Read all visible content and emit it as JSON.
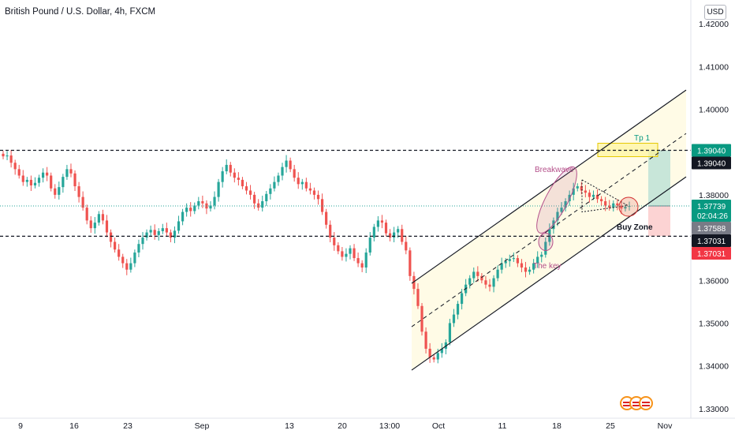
{
  "header": {
    "title": "British Pound / U.S. Dollar, 4h, FXCM"
  },
  "currency_button": "USD",
  "colors": {
    "up": "#26a69a",
    "down": "#ef5350",
    "channel_fill": "#fffbe6",
    "ellipse": "#b4508a",
    "buy_zone_circle": "#e57373",
    "target_fill": "#c8e6d9",
    "stop_fill": "#fcd3d3",
    "tp_box": "#fff59d",
    "tag_green": "#089981",
    "tag_black": "#131722",
    "tag_gray": "#787b86",
    "tag_red": "#f23645"
  },
  "annotations": {
    "breakwave": "Breakwave",
    "the_key": "The key",
    "buy_zone": "Buy Zone",
    "tp": "Tp 1"
  },
  "price_tags": [
    {
      "value": "1.39040",
      "style": "green",
      "price": 1.3904
    },
    {
      "value": "1.39040",
      "style": "black",
      "price": 1.3904
    },
    {
      "value": "1.37739",
      "sub": "02:04:26",
      "style": "green",
      "price": 1.37739
    },
    {
      "value": "1.37588",
      "style": "gray",
      "price": 1.37588
    },
    {
      "value": "1.37031",
      "style": "black",
      "price": 1.37031
    },
    {
      "value": "1.37031",
      "style": "red",
      "price": 1.37031
    }
  ],
  "chart_data": {
    "type": "candlestick",
    "title": "British Pound / U.S. Dollar, 4h, FXCM",
    "symbol": "GBPUSD",
    "timeframe": "4h",
    "y_ticks": [
      "1.42000",
      "1.41000",
      "1.40000",
      "1.38000",
      "1.36000",
      "1.35000",
      "1.34000",
      "1.33000"
    ],
    "y_tick_values": [
      1.42,
      1.41,
      1.4,
      1.38,
      1.36,
      1.35,
      1.34,
      1.33
    ],
    "ylim": [
      1.3296,
      1.4215
    ],
    "x_ticks": [
      "9",
      "16",
      "23",
      "Sep",
      "13",
      "20",
      "13:00",
      "Oct",
      "11",
      "18",
      "25",
      "Nov"
    ],
    "horizontal_levels": [
      1.3904,
      1.37031
    ],
    "current_price": 1.37739,
    "close_series": [
      1.389,
      1.3892,
      1.3875,
      1.386,
      1.3845,
      1.383,
      1.3835,
      1.3822,
      1.3828,
      1.384,
      1.3852,
      1.3845,
      1.3815,
      1.38,
      1.3818,
      1.3842,
      1.386,
      1.385,
      1.382,
      1.3795,
      1.377,
      1.374,
      1.3722,
      1.3735,
      1.3755,
      1.374,
      1.3712,
      1.369,
      1.3672,
      1.3655,
      1.364,
      1.3625,
      1.364,
      1.3665,
      1.3685,
      1.37,
      1.3712,
      1.3718,
      1.3706,
      1.3715,
      1.3722,
      1.3712,
      1.37,
      1.3716,
      1.3738,
      1.376,
      1.377,
      1.3762,
      1.3775,
      1.3785,
      1.378,
      1.3768,
      1.3775,
      1.3795,
      1.383,
      1.3855,
      1.387,
      1.3852,
      1.384,
      1.3835,
      1.382,
      1.381,
      1.38,
      1.378,
      1.377,
      1.3785,
      1.3802,
      1.3815,
      1.383,
      1.3845,
      1.3865,
      1.388,
      1.386,
      1.384,
      1.3825,
      1.383,
      1.3815,
      1.381,
      1.38,
      1.379,
      1.376,
      1.373,
      1.37,
      1.3682,
      1.3668,
      1.3655,
      1.3662,
      1.3675,
      1.3652,
      1.364,
      1.363,
      1.3665,
      1.37,
      1.3725,
      1.374,
      1.3735,
      1.371,
      1.37,
      1.3712,
      1.372,
      1.369,
      1.367,
      1.361,
      1.358,
      1.354,
      1.348,
      1.344,
      1.342,
      1.3415,
      1.343,
      1.344,
      1.3455,
      1.35,
      1.352,
      1.3545,
      1.357,
      1.359,
      1.3605,
      1.362,
      1.361,
      1.36,
      1.359,
      1.3585,
      1.3605,
      1.3625,
      1.364,
      1.3645,
      1.365,
      1.3652,
      1.364,
      1.363,
      1.362,
      1.3625,
      1.364,
      1.3655,
      1.366,
      1.369,
      1.372,
      1.374,
      1.376,
      1.377,
      1.3785,
      1.38,
      1.3815,
      1.382,
      1.381,
      1.3805,
      1.3795,
      1.38,
      1.379,
      1.3785,
      1.3775,
      1.377,
      1.378,
      1.3775,
      1.3768,
      1.3772,
      1.3774
    ]
  }
}
